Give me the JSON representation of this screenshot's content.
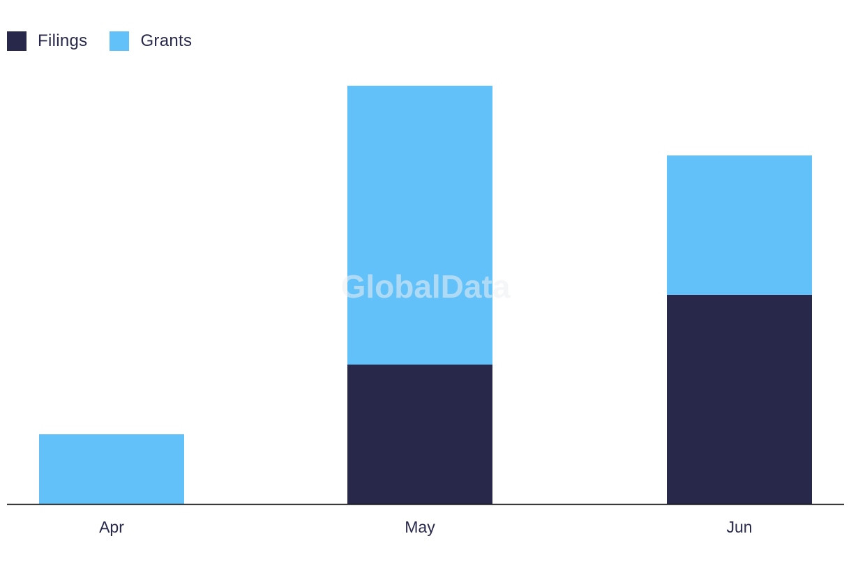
{
  "chart_data": {
    "type": "bar",
    "stacked": true,
    "categories": [
      "Apr",
      "May",
      "Jun"
    ],
    "series": [
      {
        "name": "Filings",
        "values": [
          0,
          2,
          3
        ],
        "color": "#27284a"
      },
      {
        "name": "Grants",
        "values": [
          1,
          4,
          2
        ],
        "color": "#63c1f9"
      }
    ],
    "title": "",
    "xlabel": "",
    "ylabel": "",
    "ylim": [
      0,
      6
    ],
    "grid": false,
    "legend_position": "top-left"
  },
  "watermark": "GlobalData"
}
